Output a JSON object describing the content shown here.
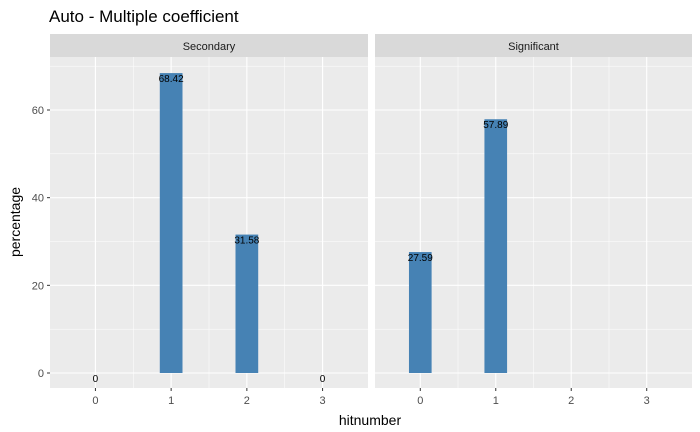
{
  "chart_data": {
    "type": "bar",
    "title": "Auto - Multiple coefficient",
    "xlabel": "hitnumber",
    "ylabel": "percentage",
    "categories": [
      "0",
      "1",
      "2",
      "3"
    ],
    "ylim": [
      0,
      70
    ],
    "yticks": [
      0,
      20,
      40,
      60
    ],
    "grid": true,
    "bar_color": "#4682B4",
    "panel_background": "#EBEBEB",
    "strip_background": "#D9D9D9",
    "facets": [
      {
        "name": "Secondary",
        "values": [
          0,
          68.42,
          31.58,
          0
        ],
        "labels": [
          "0",
          "68.42",
          "31.58",
          "0"
        ]
      },
      {
        "name": "Significant",
        "values": [
          27.59,
          57.89,
          null,
          null
        ],
        "labels": [
          "27.59",
          "57.89",
          null,
          null
        ]
      }
    ]
  }
}
